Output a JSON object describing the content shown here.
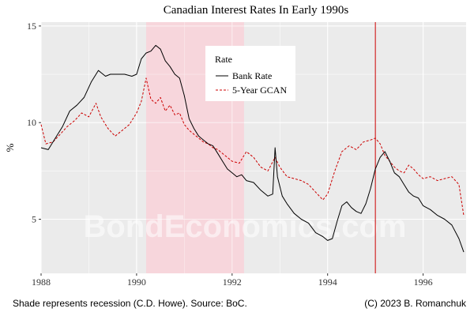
{
  "chart_data": {
    "type": "line",
    "title": "Canadian Interest Rates In Early 1990s",
    "xlabel": "",
    "ylabel": "%",
    "xlim": [
      1988.0,
      1996.9
    ],
    "ylim": [
      2.2,
      15.2
    ],
    "x_ticks": [
      1988,
      1990,
      1992,
      1994,
      1996
    ],
    "y_ticks": [
      5,
      10,
      15
    ],
    "grid": true,
    "legend": {
      "title": "Rate",
      "placement": "top-center"
    },
    "recession_shading": {
      "start": 1990.2,
      "end": 1992.25,
      "color": "#f7d6dc"
    },
    "vertical_line": {
      "x": 1995.0,
      "color": "#cc0000"
    },
    "watermark": "BondEconomics.com",
    "series": [
      {
        "name": "Bank Rate",
        "color": "#000000",
        "dash": "solid",
        "x": [
          1988.0,
          1988.15,
          1988.3,
          1988.45,
          1988.6,
          1988.75,
          1988.9,
          1989.05,
          1989.2,
          1989.35,
          1989.45,
          1989.6,
          1989.75,
          1989.9,
          1990.0,
          1990.1,
          1990.2,
          1990.3,
          1990.4,
          1990.5,
          1990.6,
          1990.7,
          1990.8,
          1990.9,
          1991.0,
          1991.1,
          1991.2,
          1991.3,
          1991.4,
          1991.5,
          1991.6,
          1991.7,
          1991.8,
          1991.9,
          1992.0,
          1992.1,
          1992.2,
          1992.3,
          1992.45,
          1992.6,
          1992.75,
          1992.85,
          1992.9,
          1992.95,
          1993.0,
          1993.05,
          1993.15,
          1993.3,
          1993.45,
          1993.6,
          1993.75,
          1993.9,
          1994.0,
          1994.1,
          1994.2,
          1994.3,
          1994.4,
          1994.5,
          1994.6,
          1994.7,
          1994.8,
          1994.9,
          1995.0,
          1995.1,
          1995.2,
          1995.3,
          1995.4,
          1995.5,
          1995.6,
          1995.7,
          1995.8,
          1995.9,
          1996.0,
          1996.15,
          1996.3,
          1996.45,
          1996.6,
          1996.75,
          1996.85
        ],
        "values": [
          8.7,
          8.6,
          9.2,
          9.8,
          10.6,
          10.9,
          11.3,
          12.1,
          12.7,
          12.4,
          12.5,
          12.5,
          12.5,
          12.4,
          12.5,
          13.3,
          13.6,
          13.7,
          14.0,
          13.8,
          13.2,
          12.9,
          12.5,
          12.3,
          11.4,
          10.2,
          9.7,
          9.3,
          9.1,
          8.9,
          8.8,
          8.4,
          8.0,
          7.6,
          7.4,
          7.2,
          7.3,
          7.0,
          6.9,
          6.5,
          6.2,
          6.3,
          8.7,
          7.2,
          6.7,
          6.2,
          5.8,
          5.3,
          5.0,
          4.8,
          4.3,
          4.1,
          3.9,
          4.0,
          4.9,
          5.7,
          5.9,
          5.6,
          5.4,
          5.3,
          5.8,
          6.6,
          7.6,
          8.2,
          8.5,
          8.0,
          7.4,
          7.2,
          6.8,
          6.4,
          6.2,
          6.1,
          5.7,
          5.5,
          5.2,
          5.0,
          4.7,
          4.0,
          3.3
        ]
      },
      {
        "name": "5-Year GCAN",
        "color": "#cc0000",
        "dash": "dashed",
        "x": [
          1988.0,
          1988.1,
          1988.25,
          1988.4,
          1988.55,
          1988.7,
          1988.85,
          1989.0,
          1989.15,
          1989.25,
          1989.4,
          1989.55,
          1989.7,
          1989.85,
          1990.0,
          1990.1,
          1990.2,
          1990.3,
          1990.4,
          1990.5,
          1990.6,
          1990.7,
          1990.8,
          1990.9,
          1991.0,
          1991.1,
          1991.2,
          1991.3,
          1991.4,
          1991.5,
          1991.6,
          1991.7,
          1991.8,
          1991.9,
          1992.0,
          1992.15,
          1992.3,
          1992.45,
          1992.6,
          1992.75,
          1992.9,
          1993.0,
          1993.15,
          1993.3,
          1993.45,
          1993.6,
          1993.75,
          1993.9,
          1994.0,
          1994.15,
          1994.3,
          1994.45,
          1994.6,
          1994.75,
          1994.9,
          1995.0,
          1995.1,
          1995.2,
          1995.3,
          1995.4,
          1995.5,
          1995.6,
          1995.7,
          1995.8,
          1995.9,
          1996.0,
          1996.15,
          1996.3,
          1996.45,
          1996.6,
          1996.75,
          1996.85
        ],
        "values": [
          9.9,
          8.9,
          9.0,
          9.4,
          9.8,
          10.1,
          10.5,
          10.3,
          11.0,
          10.3,
          9.7,
          9.3,
          9.6,
          9.9,
          10.5,
          11.1,
          12.3,
          11.2,
          11.0,
          11.3,
          10.6,
          10.9,
          10.4,
          10.5,
          9.9,
          9.6,
          9.4,
          9.2,
          9.0,
          8.9,
          8.7,
          8.6,
          8.4,
          8.2,
          8.0,
          7.9,
          8.5,
          8.2,
          7.7,
          7.5,
          8.2,
          7.7,
          7.2,
          7.1,
          7.0,
          6.8,
          6.4,
          6.0,
          6.3,
          7.5,
          8.5,
          8.8,
          8.6,
          9.0,
          9.1,
          9.2,
          8.9,
          8.3,
          8.0,
          7.7,
          7.5,
          7.4,
          7.8,
          7.6,
          7.3,
          7.1,
          7.2,
          7.0,
          7.1,
          7.2,
          6.8,
          5.2
        ]
      }
    ]
  },
  "footer": {
    "source": "Shade represents recession (C.D. Howe). Source: BoC.",
    "copyright": "(C) 2023 B. Romanchuk"
  }
}
